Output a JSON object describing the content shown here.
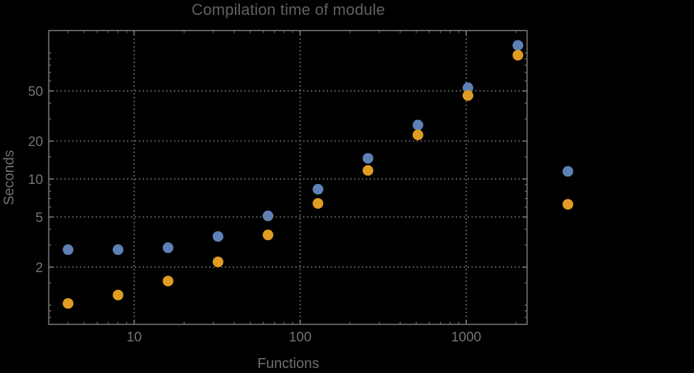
{
  "page": {
    "background": "#000000"
  },
  "chart_data": {
    "type": "scatter",
    "title": "Compilation time of module",
    "xlabel": "Functions",
    "ylabel": "Seconds",
    "x_scale": "log",
    "y_scale": "log",
    "xlim": [
      3.06,
      2326
    ],
    "ylim": [
      0.703,
      150.7
    ],
    "grid": "dotted lines at labeled major ticks only",
    "legend": "none",
    "x": [
      4,
      8,
      16,
      32,
      64,
      128,
      256,
      512,
      1024,
      2048,
      4096
    ],
    "series": [
      {
        "name": "blue",
        "color": "#5E81B5",
        "values": [
          2.75,
          2.75,
          2.85,
          3.5,
          5.1,
          8.3,
          14.6,
          26.8,
          53,
          115,
          11.5
        ]
      },
      {
        "name": "orange",
        "color": "#E19C24",
        "values": [
          1.03,
          1.2,
          1.55,
          2.2,
          3.6,
          6.4,
          11.7,
          22.4,
          46,
          96,
          6.3
        ]
      }
    ],
    "x_ticks": {
      "major": [
        10,
        100,
        1000
      ],
      "major_labels": [
        "10",
        "100",
        "1000"
      ],
      "minor": [
        4,
        5,
        6,
        7,
        8,
        9,
        20,
        30,
        40,
        50,
        60,
        70,
        80,
        90,
        200,
        300,
        400,
        500,
        600,
        700,
        800,
        900,
        2000
      ]
    },
    "y_ticks": {
      "major": [
        2,
        5,
        10,
        20,
        50
      ],
      "major_labels": [
        "2",
        "5",
        "10",
        "20",
        "50"
      ],
      "minor": [
        0.8,
        0.9,
        1,
        1.5,
        3,
        4,
        6,
        7,
        8,
        9,
        15,
        30,
        40,
        60,
        70,
        80,
        90,
        100
      ]
    },
    "colors": {
      "frame": "#7a7a7a",
      "grid": "#6e6e6e",
      "tick_label": "#757575",
      "title": "#616161",
      "axis_label": "#6f6f6f"
    }
  }
}
